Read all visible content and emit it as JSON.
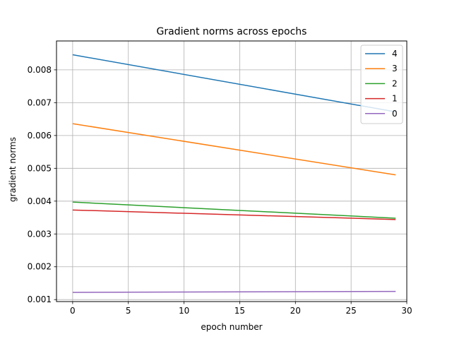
{
  "chart_data": {
    "type": "line",
    "title": "Gradient norms across epochs",
    "xlabel": "epoch number",
    "ylabel": "gradient norms",
    "xlim": [
      -1.45,
      30.0
    ],
    "ylim": [
      0.00094,
      0.00888
    ],
    "xticks": [
      0,
      5,
      10,
      15,
      20,
      25,
      30
    ],
    "yticks": [
      0.001,
      0.002,
      0.003,
      0.004,
      0.005,
      0.006,
      0.007,
      0.008
    ],
    "ytick_labels": [
      "0.001",
      "0.002",
      "0.003",
      "0.004",
      "0.005",
      "0.006",
      "0.007",
      "0.008"
    ],
    "grid": true,
    "legend_position": "top-right",
    "x": [
      0,
      29
    ],
    "series": [
      {
        "name": "4",
        "color": "#1f77b4",
        "values": [
          0.00846,
          0.00672
        ]
      },
      {
        "name": "3",
        "color": "#ff7f0e",
        "values": [
          0.00636,
          0.0048
        ]
      },
      {
        "name": "2",
        "color": "#2ca02c",
        "values": [
          0.00397,
          0.00348
        ]
      },
      {
        "name": "1",
        "color": "#d62728",
        "values": [
          0.00373,
          0.00344
        ]
      },
      {
        "name": "0",
        "color": "#9467bd",
        "values": [
          0.00122,
          0.00125
        ]
      }
    ]
  }
}
